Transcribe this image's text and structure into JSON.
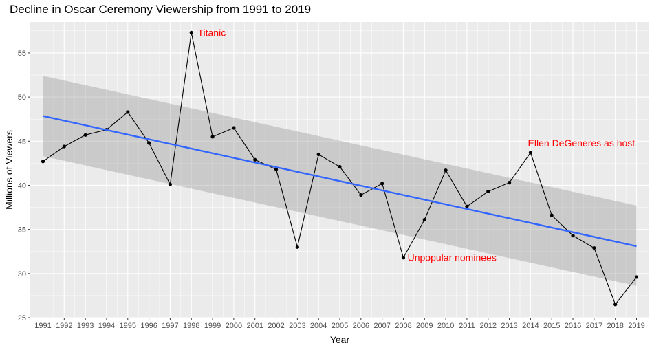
{
  "chart_data": {
    "type": "line",
    "title": "Decline in Oscar Ceremony Viewership from 1991 to 2019",
    "xlabel": "Year",
    "ylabel": "Millions of Viewers",
    "ylim": [
      25,
      58.5
    ],
    "yticks": [
      25,
      30,
      35,
      40,
      45,
      50,
      55
    ],
    "grid": true,
    "x": [
      "1991",
      "1992",
      "1993",
      "1994",
      "1995",
      "1996",
      "1997",
      "1998",
      "1999",
      "2000",
      "2001",
      "2002",
      "2003",
      "2004",
      "2005",
      "2006",
      "2007",
      "2008",
      "2009",
      "2010",
      "2011",
      "2012",
      "2013",
      "2014",
      "2015",
      "2016",
      "2017",
      "2018",
      "2019"
    ],
    "series": [
      {
        "values": [
          42.7,
          44.4,
          45.7,
          46.3,
          48.3,
          44.8,
          40.1,
          57.3,
          45.5,
          46.5,
          42.9,
          41.8,
          33.0,
          43.5,
          42.1,
          38.9,
          40.2,
          31.8,
          36.1,
          41.7,
          37.6,
          39.3,
          40.3,
          43.7,
          36.6,
          34.3,
          32.9,
          26.5,
          29.6
        ],
        "color": "#000000"
      }
    ],
    "trend": {
      "method": "linear regression",
      "start": 47.85,
      "end": 33.1,
      "ci_start": [
        43.3,
        52.4
      ],
      "ci_end": [
        28.6,
        37.7
      ],
      "color": "#3366ff",
      "band_color": "#999999"
    },
    "annotations": [
      {
        "x": "1998",
        "y": 57.3,
        "text": "Titanic",
        "color": "#ff0000",
        "anchor": "start",
        "dx": 0.3
      },
      {
        "x": "2008",
        "y": 31.8,
        "text": "Unpopular nominees",
        "color": "#ff0000",
        "anchor": "start",
        "dx": 0.2
      },
      {
        "x": "2014",
        "y": 44.8,
        "text": "Ellen DeGeneres as host",
        "color": "#ff0000",
        "anchor": "middle",
        "dx": 2.4
      }
    ],
    "colors": {
      "panel": "#ebebeb",
      "grid": "#ffffff",
      "text": "#4d4d4d"
    }
  }
}
